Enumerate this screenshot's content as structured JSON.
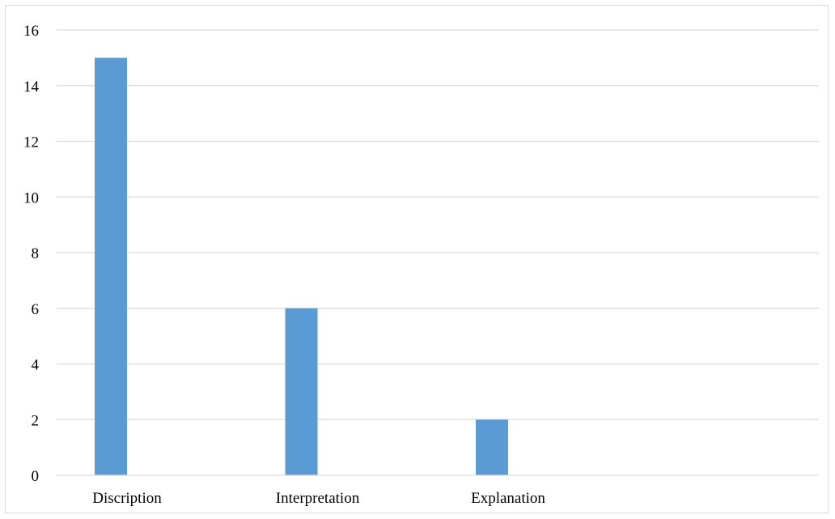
{
  "chart_data": {
    "type": "bar",
    "categories": [
      "Discription",
      "Interpretation",
      "Explanation",
      ""
    ],
    "values": [
      15,
      6,
      2,
      null
    ],
    "title": "",
    "xlabel": "",
    "ylabel": "",
    "ylim": [
      0,
      16
    ],
    "yticks": [
      0,
      2,
      4,
      6,
      8,
      10,
      12,
      14,
      16
    ],
    "grid": "horizontal",
    "legend": "none",
    "colors": {
      "bar": "#5b9bd5",
      "grid": "#d9d9d9",
      "axis": "#d9d9d9",
      "text": "#000000"
    }
  }
}
